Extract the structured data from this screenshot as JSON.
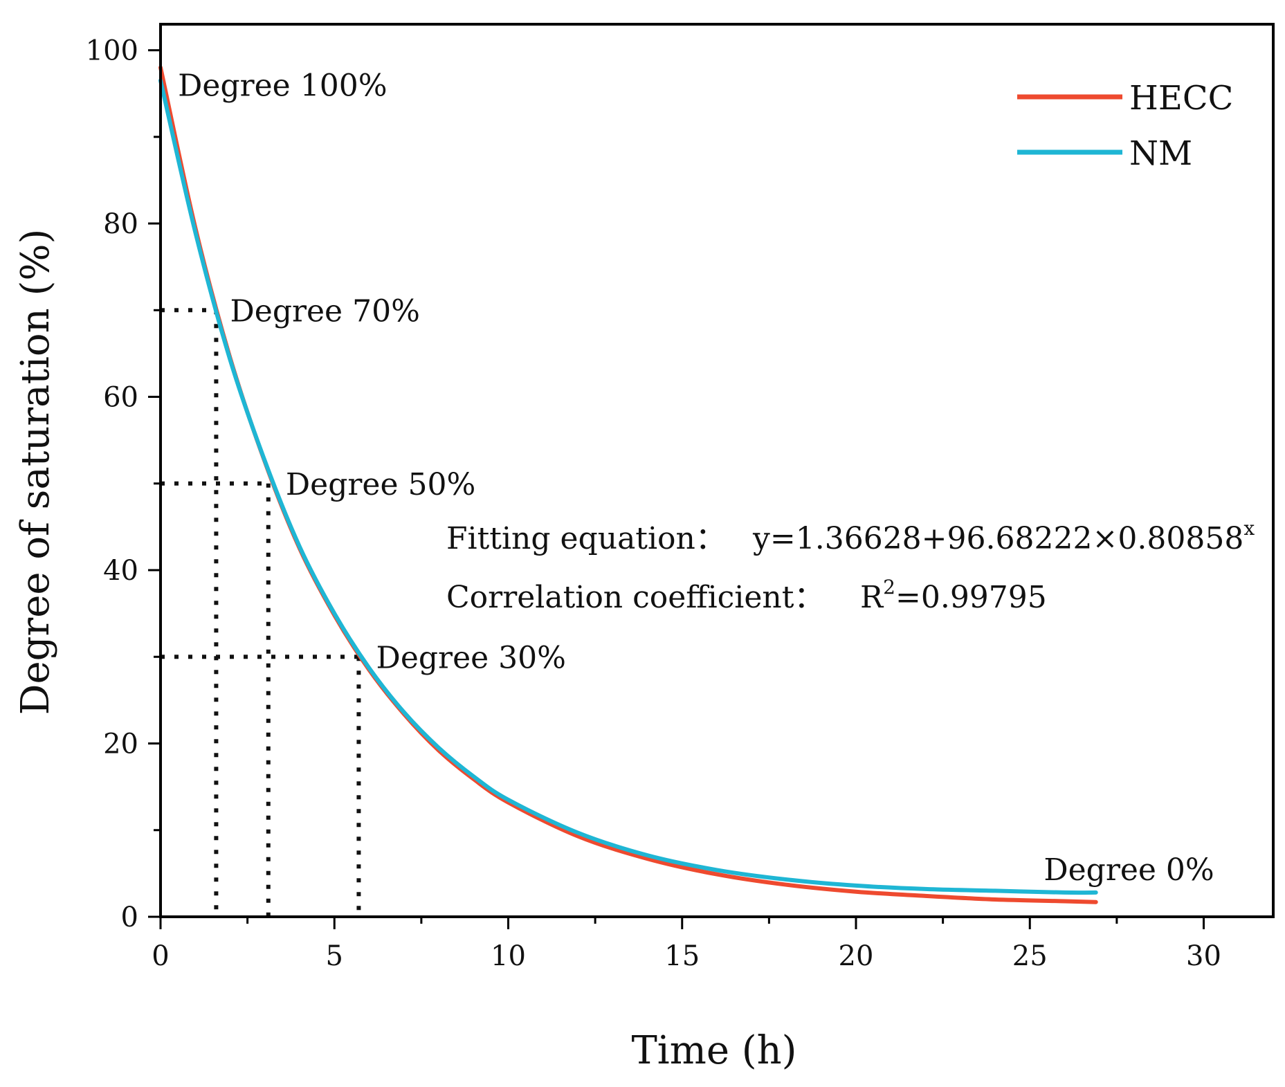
{
  "chart_data": {
    "type": "line",
    "xlabel": "Time (h)",
    "ylabel": "Degree of saturation (%)",
    "xlim": [
      0,
      32
    ],
    "ylim": [
      0,
      103
    ],
    "x_ticks": [
      0,
      5,
      10,
      15,
      20,
      25,
      30
    ],
    "x_tick_labels": [
      "0",
      "5",
      "10",
      "15",
      "20",
      "25",
      "30"
    ],
    "y_ticks": [
      0,
      20,
      40,
      60,
      80,
      100
    ],
    "y_tick_labels": [
      "0",
      "20",
      "40",
      "60",
      "80",
      "100"
    ],
    "grid": false,
    "legend_position": "top-right",
    "series": [
      {
        "name": "HECC",
        "color": "#ee4a2f",
        "x": [
          0,
          1,
          2,
          3,
          4,
          5,
          6,
          7,
          8,
          9,
          10,
          12,
          14,
          16,
          18,
          20,
          22,
          24,
          26,
          26.9
        ],
        "y": [
          98.0,
          79.5,
          64.5,
          52.5,
          42.5,
          34.8,
          28.5,
          23.4,
          19.2,
          15.9,
          13.2,
          9.3,
          6.7,
          4.9,
          3.7,
          2.9,
          2.4,
          2.0,
          1.8,
          1.7
        ]
      },
      {
        "name": "NM",
        "color": "#1fb6d4",
        "x": [
          0,
          1,
          2,
          3,
          4,
          5,
          6,
          7,
          8,
          9,
          10,
          12,
          14,
          16,
          18,
          20,
          22,
          24,
          26,
          26.9
        ],
        "y": [
          96.5,
          79.0,
          64.3,
          52.6,
          42.7,
          35.0,
          28.7,
          23.6,
          19.5,
          16.2,
          13.5,
          9.7,
          7.1,
          5.4,
          4.3,
          3.6,
          3.2,
          3.0,
          2.8,
          2.8
        ]
      }
    ],
    "reference_lines": [
      {
        "x": 1.6,
        "y": 70
      },
      {
        "x": 3.1,
        "y": 50
      },
      {
        "x": 5.7,
        "y": 30
      }
    ],
    "annotations": [
      {
        "text": "Degree 100%",
        "x": 0.5,
        "y": 96
      },
      {
        "text": "Degree 70%",
        "x": 2.0,
        "y": 70
      },
      {
        "text": "Degree 50%",
        "x": 3.6,
        "y": 50
      },
      {
        "text": "Degree 30%",
        "x": 6.2,
        "y": 30
      },
      {
        "text": "Degree 0%",
        "x": 25.4,
        "y": 5.5
      }
    ],
    "fit": {
      "label": "Fitting equation：",
      "equation": "y=1.36628+96.68222×0.80858",
      "exponent": "x",
      "r_label": "Correlation coefficient：",
      "r_symbol": "R",
      "r_power": "2",
      "r_value": "=0.99795"
    }
  }
}
